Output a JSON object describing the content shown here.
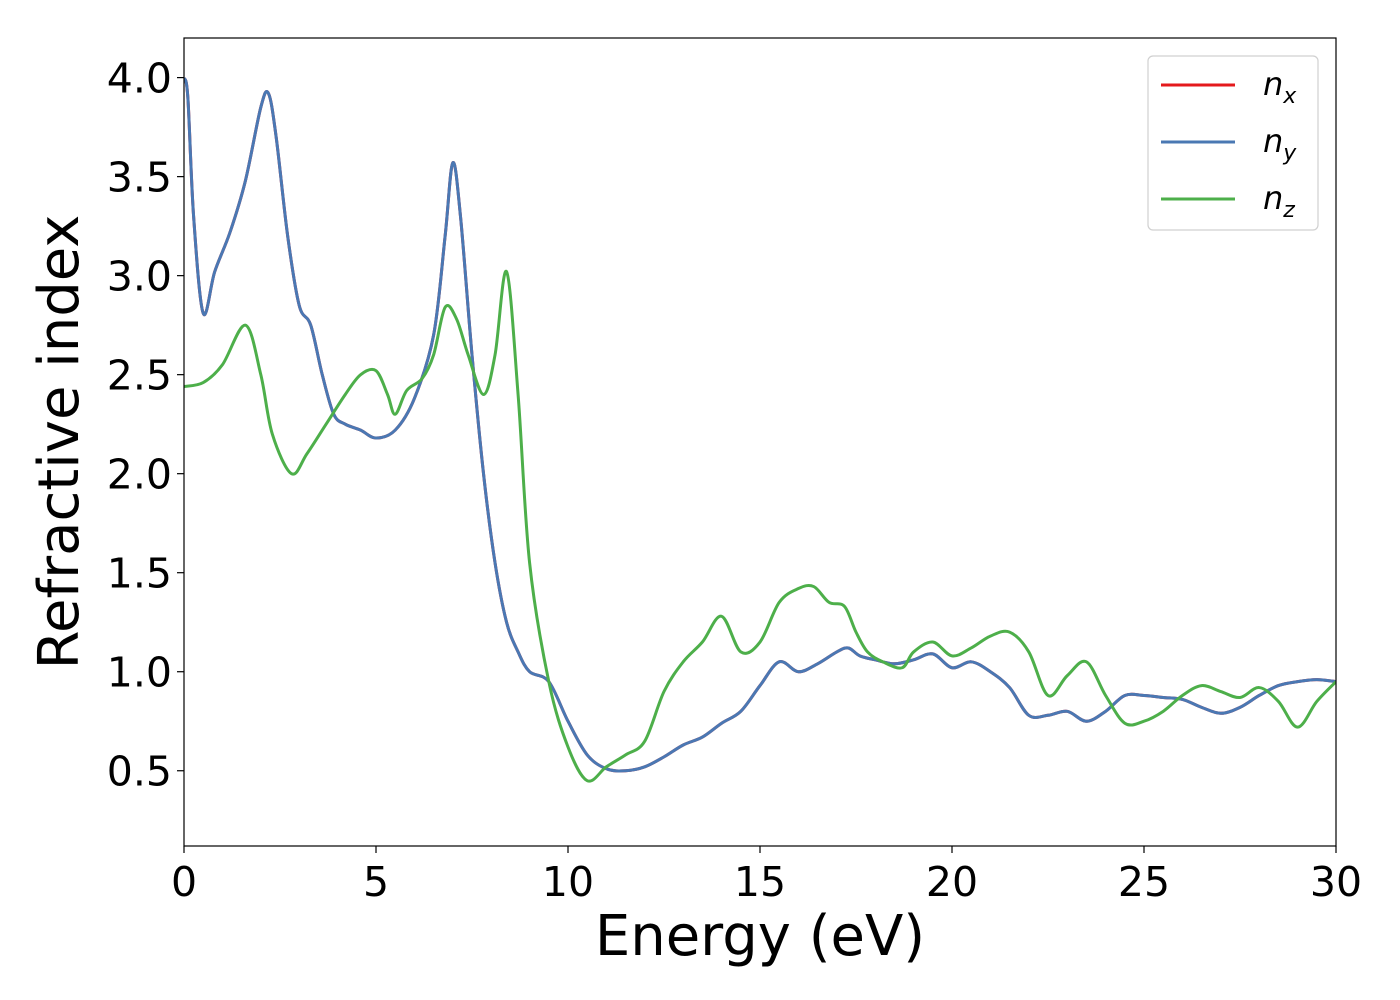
{
  "chart_data": {
    "type": "line",
    "title": "",
    "xlabel": "Energy (eV)",
    "ylabel": "Refractive index",
    "xlim": [
      0,
      30
    ],
    "ylim": [
      0.12,
      4.2
    ],
    "xticks": [
      0,
      5,
      10,
      15,
      20,
      25,
      30
    ],
    "xtick_labels": [
      "0",
      "5",
      "10",
      "15",
      "20",
      "25",
      "30"
    ],
    "yticks": [
      0.5,
      1.0,
      1.5,
      2.0,
      2.5,
      3.0,
      3.5,
      4.0
    ],
    "ytick_labels": [
      "0.5",
      "1.0",
      "1.5",
      "2.0",
      "2.5",
      "3.0",
      "3.5",
      "4.0"
    ],
    "grid": false,
    "legend_position": "top-right",
    "series": [
      {
        "name": "n_x",
        "legend_base": "n",
        "legend_sub": "x",
        "color": "#e41a1c",
        "x": [
          0,
          0.1,
          0.25,
          0.5,
          0.8,
          1.2,
          1.6,
          2.0,
          2.2,
          2.4,
          2.7,
          3.0,
          3.3,
          3.6,
          3.9,
          4.2,
          4.6,
          5.0,
          5.5,
          6.0,
          6.5,
          6.8,
          7.0,
          7.2,
          7.5,
          7.8,
          8.1,
          8.4,
          8.7,
          9.0,
          9.5,
          10.0,
          10.5,
          11.0,
          11.5,
          12.0,
          12.5,
          13.0,
          13.5,
          14.0,
          14.5,
          15.0,
          15.5,
          16.0,
          16.5,
          17.0,
          17.3,
          17.6,
          18.0,
          18.5,
          19.0,
          19.5,
          20.0,
          20.5,
          21.0,
          21.5,
          22.0,
          22.5,
          23.0,
          23.5,
          24.0,
          24.5,
          25.0,
          25.5,
          26.0,
          26.5,
          27.0,
          27.5,
          28.0,
          28.5,
          29.0,
          29.5,
          30.0
        ],
        "values": [
          4.0,
          3.9,
          3.3,
          2.81,
          3.02,
          3.22,
          3.48,
          3.85,
          3.92,
          3.7,
          3.2,
          2.85,
          2.75,
          2.5,
          2.3,
          2.25,
          2.22,
          2.18,
          2.22,
          2.38,
          2.7,
          3.2,
          3.57,
          3.3,
          2.6,
          2.0,
          1.55,
          1.25,
          1.1,
          1.0,
          0.95,
          0.75,
          0.58,
          0.51,
          0.5,
          0.52,
          0.57,
          0.63,
          0.67,
          0.74,
          0.8,
          0.93,
          1.05,
          1.0,
          1.04,
          1.1,
          1.12,
          1.08,
          1.06,
          1.04,
          1.06,
          1.09,
          1.02,
          1.05,
          1.0,
          0.92,
          0.78,
          0.78,
          0.8,
          0.75,
          0.8,
          0.88,
          0.88,
          0.87,
          0.86,
          0.82,
          0.79,
          0.82,
          0.88,
          0.93,
          0.95,
          0.96,
          0.95
        ]
      },
      {
        "name": "n_y",
        "legend_base": "n",
        "legend_sub": "y",
        "color": "#4a78b3",
        "x": [
          0,
          0.1,
          0.25,
          0.5,
          0.8,
          1.2,
          1.6,
          2.0,
          2.2,
          2.4,
          2.7,
          3.0,
          3.3,
          3.6,
          3.9,
          4.2,
          4.6,
          5.0,
          5.5,
          6.0,
          6.5,
          6.8,
          7.0,
          7.2,
          7.5,
          7.8,
          8.1,
          8.4,
          8.7,
          9.0,
          9.5,
          10.0,
          10.5,
          11.0,
          11.5,
          12.0,
          12.5,
          13.0,
          13.5,
          14.0,
          14.5,
          15.0,
          15.5,
          16.0,
          16.5,
          17.0,
          17.3,
          17.6,
          18.0,
          18.5,
          19.0,
          19.5,
          20.0,
          20.5,
          21.0,
          21.5,
          22.0,
          22.5,
          23.0,
          23.5,
          24.0,
          24.5,
          25.0,
          25.5,
          26.0,
          26.5,
          27.0,
          27.5,
          28.0,
          28.5,
          29.0,
          29.5,
          30.0
        ],
        "values": [
          4.0,
          3.9,
          3.3,
          2.81,
          3.02,
          3.22,
          3.48,
          3.85,
          3.92,
          3.7,
          3.2,
          2.85,
          2.75,
          2.5,
          2.3,
          2.25,
          2.22,
          2.18,
          2.22,
          2.38,
          2.7,
          3.2,
          3.57,
          3.3,
          2.6,
          2.0,
          1.55,
          1.25,
          1.1,
          1.0,
          0.95,
          0.75,
          0.58,
          0.51,
          0.5,
          0.52,
          0.57,
          0.63,
          0.67,
          0.74,
          0.8,
          0.93,
          1.05,
          1.0,
          1.04,
          1.1,
          1.12,
          1.08,
          1.06,
          1.04,
          1.06,
          1.09,
          1.02,
          1.05,
          1.0,
          0.92,
          0.78,
          0.78,
          0.8,
          0.75,
          0.8,
          0.88,
          0.88,
          0.87,
          0.86,
          0.82,
          0.79,
          0.82,
          0.88,
          0.93,
          0.95,
          0.96,
          0.95
        ]
      },
      {
        "name": "n_z",
        "legend_base": "n",
        "legend_sub": "z",
        "color": "#4daf4a",
        "x": [
          0,
          0.5,
          1.0,
          1.6,
          2.0,
          2.3,
          2.8,
          3.2,
          3.7,
          4.2,
          4.6,
          5.0,
          5.3,
          5.5,
          5.8,
          6.2,
          6.5,
          6.8,
          7.1,
          7.4,
          7.8,
          8.1,
          8.4,
          8.7,
          9.0,
          9.5,
          10.0,
          10.5,
          11.0,
          11.5,
          12.0,
          12.5,
          13.0,
          13.5,
          14.0,
          14.5,
          15.0,
          15.5,
          16.0,
          16.4,
          16.8,
          17.2,
          17.5,
          17.8,
          18.2,
          18.7,
          19.0,
          19.5,
          20.0,
          20.5,
          21.0,
          21.5,
          22.0,
          22.5,
          23.0,
          23.5,
          24.0,
          24.5,
          25.0,
          25.5,
          26.0,
          26.5,
          27.0,
          27.5,
          28.0,
          28.5,
          29.0,
          29.5,
          30.0
        ],
        "values": [
          2.44,
          2.46,
          2.55,
          2.75,
          2.5,
          2.2,
          2.0,
          2.1,
          2.25,
          2.4,
          2.5,
          2.52,
          2.4,
          2.3,
          2.42,
          2.48,
          2.6,
          2.84,
          2.78,
          2.6,
          2.4,
          2.6,
          3.02,
          2.4,
          1.55,
          0.95,
          0.62,
          0.45,
          0.52,
          0.58,
          0.65,
          0.9,
          1.05,
          1.15,
          1.28,
          1.1,
          1.15,
          1.35,
          1.42,
          1.43,
          1.35,
          1.33,
          1.2,
          1.1,
          1.05,
          1.02,
          1.1,
          1.15,
          1.08,
          1.12,
          1.18,
          1.2,
          1.1,
          0.88,
          0.98,
          1.05,
          0.88,
          0.74,
          0.75,
          0.8,
          0.88,
          0.93,
          0.9,
          0.87,
          0.92,
          0.85,
          0.72,
          0.85,
          0.95
        ]
      }
    ]
  }
}
